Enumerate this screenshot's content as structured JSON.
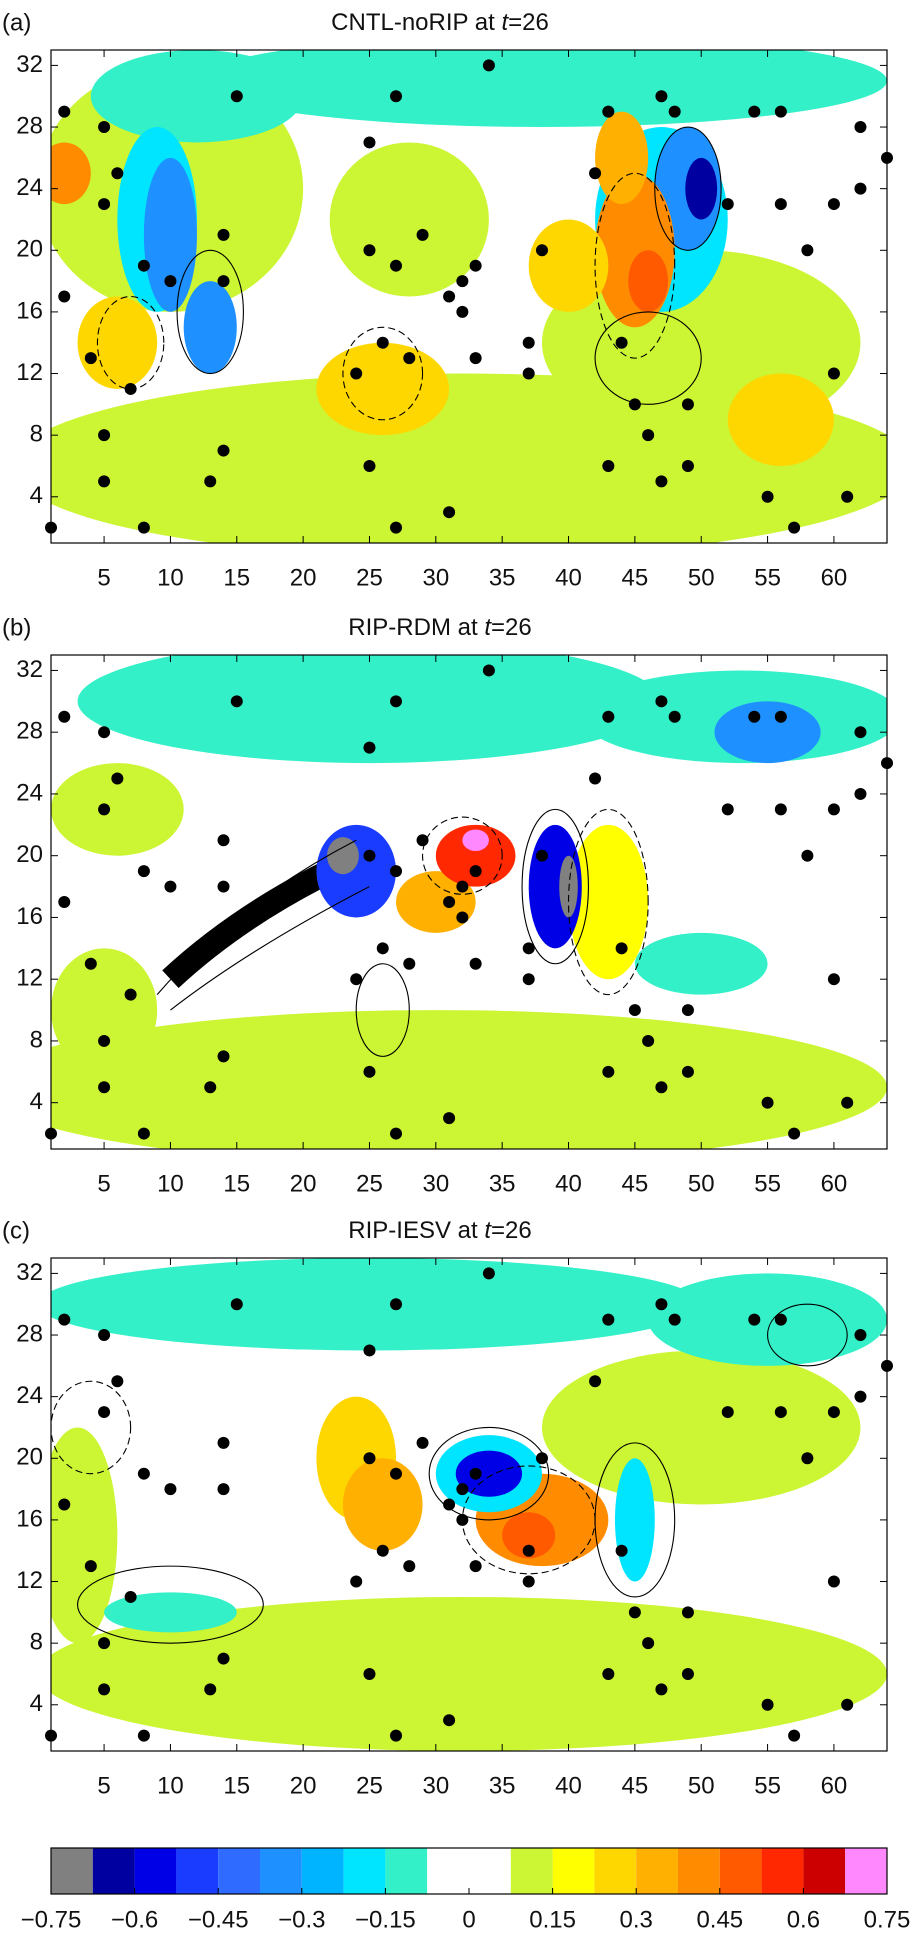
{
  "chart_data": [
    {
      "type": "contour",
      "panel_label": "(a)",
      "title": "CNTL-noRIP at ",
      "title_var": "t",
      "title_suffix": "=26",
      "xlim": [
        1,
        64
      ],
      "ylim": [
        1,
        33
      ],
      "xticks": [
        5,
        10,
        15,
        20,
        25,
        30,
        35,
        40,
        45,
        50,
        55,
        60
      ],
      "yticks": [
        4,
        8,
        12,
        16,
        20,
        24,
        28,
        32
      ],
      "stations": {
        "x": [
          1,
          2,
          2,
          4,
          5,
          5,
          5,
          5,
          6,
          7,
          8,
          8,
          10,
          13,
          14,
          14,
          14,
          15,
          24,
          25,
          25,
          25,
          26,
          27,
          27,
          27,
          28,
          29,
          31,
          31,
          32,
          32,
          33,
          33,
          34,
          37,
          37,
          38,
          42,
          43,
          43,
          44,
          45,
          46,
          47,
          47,
          48,
          49,
          49,
          52,
          54,
          55,
          56,
          56,
          57,
          58,
          60,
          60,
          61,
          62,
          62,
          64
        ],
        "y": [
          2,
          29,
          17,
          13,
          28,
          23,
          8,
          5,
          25,
          11,
          2,
          19,
          18,
          5,
          7,
          21,
          18,
          30,
          12,
          27,
          20,
          6,
          14,
          30,
          19,
          2,
          13,
          21,
          3,
          17,
          18,
          16,
          13,
          19,
          32,
          14,
          12,
          20,
          25,
          6,
          29,
          14,
          10,
          8,
          5,
          30,
          29,
          6,
          10,
          23,
          29,
          4,
          29,
          23,
          2,
          20,
          12,
          23,
          4,
          28,
          24,
          26
        ]
      }
    },
    {
      "type": "contour",
      "panel_label": "(b)",
      "title": "RIP-RDM at ",
      "title_var": "t",
      "title_suffix": "=26",
      "xlim": [
        1,
        64
      ],
      "ylim": [
        1,
        33
      ],
      "xticks": [
        5,
        10,
        15,
        20,
        25,
        30,
        35,
        40,
        45,
        50,
        55,
        60
      ],
      "yticks": [
        4,
        8,
        12,
        16,
        20,
        24,
        28,
        32
      ],
      "stations": {
        "x": [
          1,
          2,
          2,
          4,
          5,
          5,
          5,
          5,
          6,
          7,
          8,
          8,
          10,
          13,
          14,
          14,
          14,
          15,
          24,
          25,
          25,
          25,
          26,
          27,
          27,
          27,
          28,
          29,
          31,
          31,
          32,
          32,
          33,
          33,
          34,
          37,
          37,
          38,
          42,
          43,
          43,
          44,
          45,
          46,
          47,
          47,
          48,
          49,
          49,
          52,
          54,
          55,
          56,
          56,
          57,
          58,
          60,
          60,
          61,
          62,
          62,
          64
        ],
        "y": [
          2,
          29,
          17,
          13,
          28,
          23,
          8,
          5,
          25,
          11,
          2,
          19,
          18,
          5,
          7,
          21,
          18,
          30,
          12,
          27,
          20,
          6,
          14,
          30,
          19,
          2,
          13,
          21,
          3,
          17,
          18,
          16,
          13,
          19,
          32,
          14,
          12,
          20,
          25,
          6,
          29,
          14,
          10,
          8,
          5,
          30,
          29,
          6,
          10,
          23,
          29,
          4,
          29,
          23,
          2,
          20,
          12,
          23,
          4,
          28,
          24,
          26
        ]
      }
    },
    {
      "type": "contour",
      "panel_label": "(c)",
      "title": "RIP-IESV at ",
      "title_var": "t",
      "title_suffix": "=26",
      "xlim": [
        1,
        64
      ],
      "ylim": [
        1,
        33
      ],
      "xticks": [
        5,
        10,
        15,
        20,
        25,
        30,
        35,
        40,
        45,
        50,
        55,
        60
      ],
      "yticks": [
        4,
        8,
        12,
        16,
        20,
        24,
        28,
        32
      ],
      "stations": {
        "x": [
          1,
          2,
          2,
          4,
          5,
          5,
          5,
          5,
          6,
          7,
          8,
          8,
          10,
          13,
          14,
          14,
          14,
          15,
          24,
          25,
          25,
          25,
          26,
          27,
          27,
          27,
          28,
          29,
          31,
          31,
          32,
          32,
          33,
          33,
          34,
          37,
          37,
          38,
          42,
          43,
          43,
          44,
          45,
          46,
          47,
          47,
          48,
          49,
          49,
          52,
          54,
          55,
          56,
          56,
          57,
          58,
          60,
          60,
          61,
          62,
          62,
          64
        ],
        "y": [
          2,
          29,
          17,
          13,
          28,
          23,
          8,
          5,
          25,
          11,
          2,
          19,
          18,
          5,
          7,
          21,
          18,
          30,
          12,
          27,
          20,
          6,
          14,
          30,
          19,
          2,
          13,
          21,
          3,
          17,
          18,
          16,
          13,
          19,
          32,
          14,
          12,
          20,
          25,
          6,
          29,
          14,
          10,
          8,
          5,
          30,
          29,
          6,
          10,
          23,
          29,
          4,
          29,
          23,
          2,
          20,
          12,
          23,
          4,
          28,
          24,
          26
        ]
      }
    },
    {
      "type": "colorbar",
      "xlim": [
        -0.75,
        0.75
      ],
      "bounds": [
        -0.75,
        -0.675,
        -0.6,
        -0.525,
        -0.45,
        -0.375,
        -0.3,
        -0.225,
        -0.15,
        -0.075,
        0,
        0.075,
        0.15,
        0.225,
        0.3,
        0.375,
        0.45,
        0.525,
        0.6,
        0.675,
        0.75
      ],
      "colors": [
        "#808080",
        "#0000a0",
        "#0000e6",
        "#1a3cff",
        "#2f6bff",
        "#1e90ff",
        "#00b4ff",
        "#00e5ff",
        "#33f0c8",
        "#ffffff",
        "#ffffff",
        "#ccf533",
        "#ffff00",
        "#ffd700",
        "#ffb000",
        "#ff8c00",
        "#ff5a00",
        "#ff2800",
        "#cc0000",
        "#ff88ff"
      ],
      "xticks": [
        {
          "value": -0.75,
          "label": "−0.75"
        },
        {
          "value": -0.6,
          "label": "−0.6"
        },
        {
          "value": -0.45,
          "label": "−0.45"
        },
        {
          "value": -0.3,
          "label": "−0.3"
        },
        {
          "value": -0.15,
          "label": "−0.15"
        },
        0,
        0.15,
        0.3,
        0.45,
        0.6,
        0.75
      ]
    }
  ]
}
